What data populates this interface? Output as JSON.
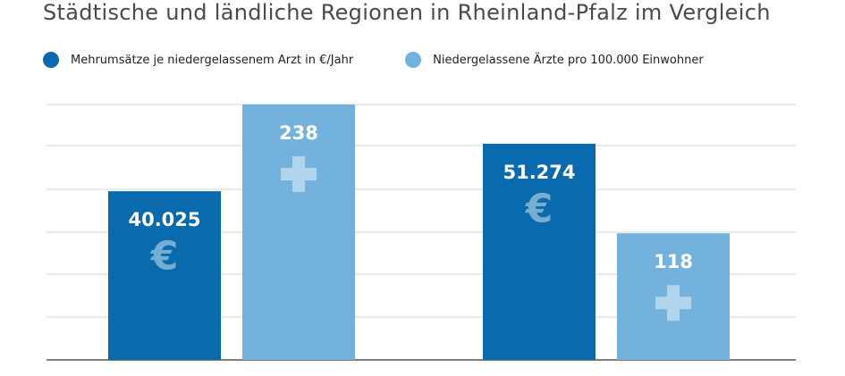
{
  "title": "Städtische und ländliche Regionen in Rheinland-Pfalz im Vergleich",
  "legend": [
    {
      "label": "Mehrumsätze je niedergelassenem Arzt in €/Jahr",
      "color": "#0a6aae"
    },
    {
      "label": "Niedergelassene Ärzte pro 100.000 Einwohner",
      "color": "#72b2dd"
    }
  ],
  "chart_data": {
    "type": "bar",
    "title": "Städtische und ländliche Regionen in Rheinland-Pfalz im Vergleich",
    "categories": [
      "",
      ""
    ],
    "series": [
      {
        "name": "Mehrumsätze je niedergelassenem Arzt in €/Jahr",
        "values": [
          40025,
          51274
        ],
        "labels": [
          "40.025",
          "51.274"
        ],
        "color": "#0a6aae",
        "icon": "euro-icon"
      },
      {
        "name": "Niedergelassene Ärzte pro 100.000 Einwohner",
        "values": [
          238,
          118
        ],
        "labels": [
          "238",
          "118"
        ],
        "color": "#72b2dd",
        "icon": "plus-icon"
      }
    ],
    "grid": true,
    "legend_position": "top-left",
    "gridline_color": "#d6d6d6",
    "axis_color": "#555555"
  }
}
